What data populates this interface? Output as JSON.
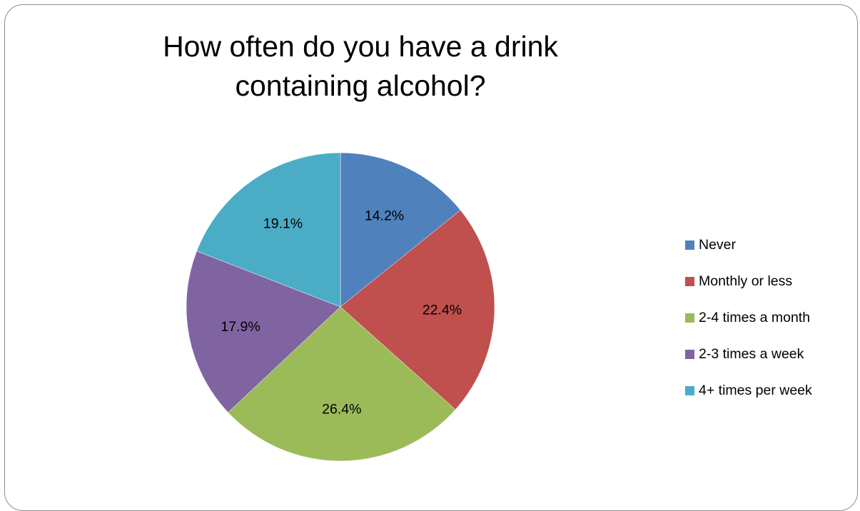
{
  "chart_data": {
    "type": "pie",
    "title": "How often do you have a drink containing alcohol?",
    "categories": [
      "Never",
      "Monthly or less",
      "2-4 times a month",
      "2-3 times a week",
      "4+ times per week"
    ],
    "values": [
      14.2,
      22.4,
      26.4,
      17.9,
      19.1
    ],
    "labels": [
      "14.2%",
      "22.4%",
      "26.4%",
      "17.9%",
      "19.1%"
    ],
    "colors": [
      "#4f81bd",
      "#c0504d",
      "#9bbb59",
      "#8064a2",
      "#4bacc6"
    ],
    "legend_position": "right"
  }
}
